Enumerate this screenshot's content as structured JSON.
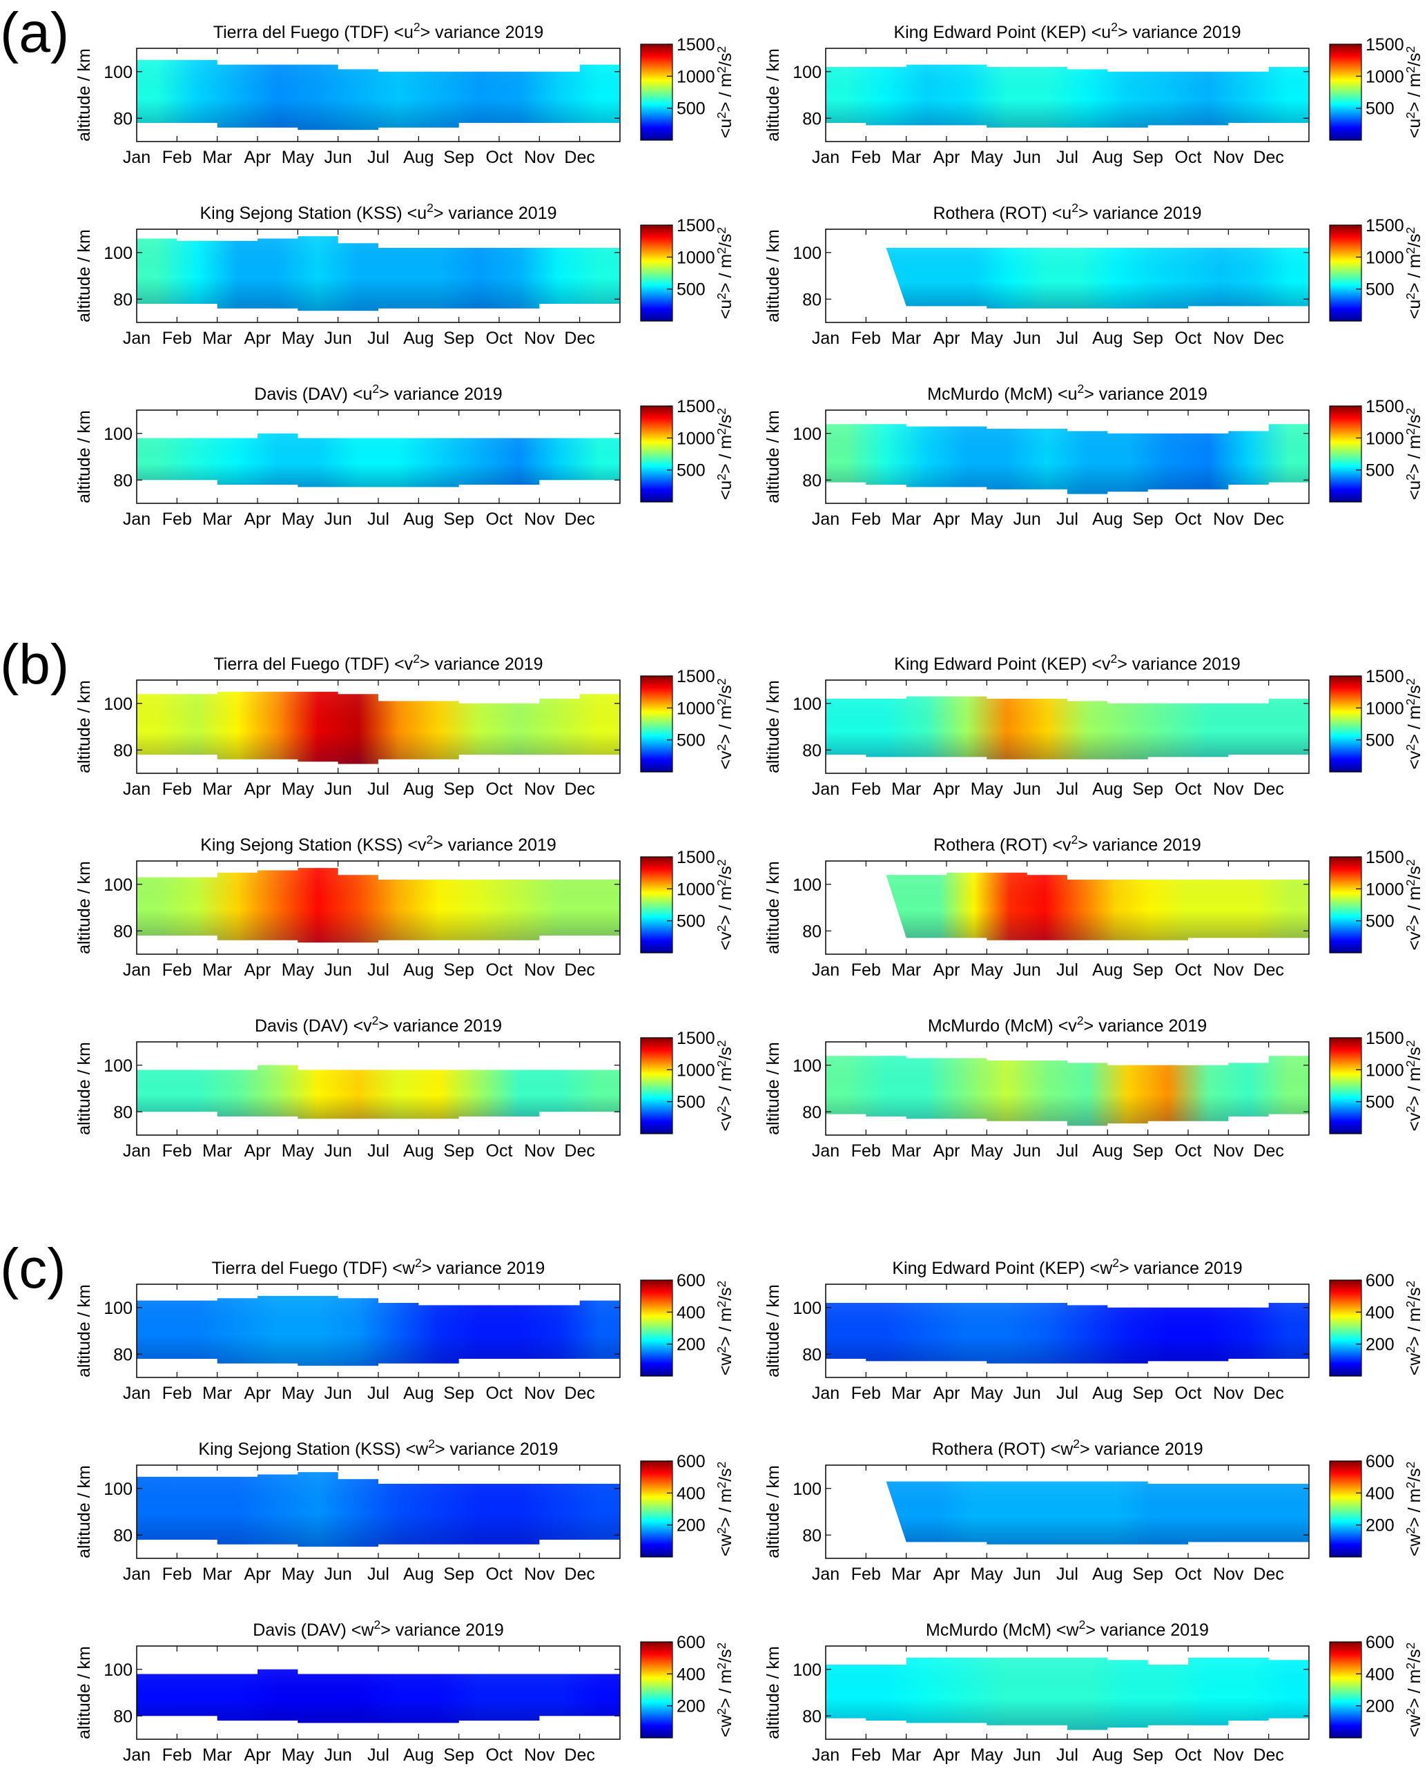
{
  "figure": {
    "months": [
      "Jan",
      "Feb",
      "Mar",
      "Apr",
      "May",
      "Jun",
      "Jul",
      "Aug",
      "Sep",
      "Oct",
      "Nov",
      "Dec"
    ],
    "ylabel": "altitude / km",
    "ylim": [
      70,
      110
    ],
    "yticks": [
      80,
      100
    ],
    "panel_groups": [
      {
        "label": "(a)",
        "component": "u",
        "cbar_ticks": [
          500,
          1000,
          1500
        ],
        "clim": [
          0,
          1500
        ]
      },
      {
        "label": "(b)",
        "component": "v",
        "cbar_ticks": [
          500,
          1000,
          1500
        ],
        "clim": [
          0,
          1500
        ]
      },
      {
        "label": "(c)",
        "component": "w",
        "cbar_ticks": [
          200,
          400,
          600
        ],
        "clim": [
          0,
          600
        ]
      }
    ],
    "stations": [
      {
        "name": "Tierra del Fuego",
        "code": "TDF"
      },
      {
        "name": "King Edward Point",
        "code": "KEP"
      },
      {
        "name": "King Sejong Station",
        "code": "KSS"
      },
      {
        "name": "Rothera",
        "code": "ROT"
      },
      {
        "name": "Davis",
        "code": "DAV"
      },
      {
        "name": "McMurdo",
        "code": "McM"
      }
    ],
    "year": "2019",
    "colormap": [
      "#00008f",
      "#0000ff",
      "#0080ff",
      "#00ffff",
      "#80ff80",
      "#ffff00",
      "#ff8000",
      "#ff0000",
      "#800000"
    ]
  },
  "chart_data": [
    {
      "type": "heatmap",
      "group": "(a)",
      "title": "Tierra del Fuego (TDF) <u2> variance 2019",
      "xlabel": "",
      "ylabel": "altitude / km",
      "ylim": [
        70,
        110
      ],
      "clabel": "<u2> / m2/s2",
      "clim": [
        0,
        1500
      ],
      "data_start_month": 0,
      "top_km": [
        105,
        105,
        103,
        103,
        103,
        101,
        100,
        100,
        100,
        100,
        100,
        103
      ],
      "bottom_km": [
        78,
        78,
        76,
        76,
        75,
        75,
        76,
        76,
        78,
        78,
        78,
        78
      ],
      "monthly_mean_variance": [
        600,
        500,
        450,
        400,
        420,
        450,
        480,
        450,
        420,
        430,
        500,
        550
      ]
    },
    {
      "type": "heatmap",
      "group": "(a)",
      "title": "King Edward Point (KEP) <u2> variance 2019",
      "xlabel": "",
      "ylabel": "altitude / km",
      "ylim": [
        70,
        110
      ],
      "clabel": "<u2> / m2/s2",
      "clim": [
        0,
        1500
      ],
      "data_start_month": 0,
      "top_km": [
        102,
        102,
        103,
        103,
        102,
        102,
        101,
        100,
        100,
        100,
        100,
        102
      ],
      "bottom_km": [
        78,
        77,
        77,
        77,
        76,
        76,
        76,
        76,
        77,
        77,
        78,
        78
      ],
      "monthly_mean_variance": [
        600,
        550,
        500,
        520,
        600,
        600,
        550,
        500,
        480,
        450,
        500,
        550
      ]
    },
    {
      "type": "heatmap",
      "group": "(a)",
      "title": "King Sejong Station (KSS) <u2> variance 2019",
      "xlabel": "",
      "ylabel": "altitude / km",
      "ylim": [
        70,
        110
      ],
      "clabel": "<u2> / m2/s2",
      "clim": [
        0,
        1500
      ],
      "data_start_month": 0,
      "top_km": [
        106,
        105,
        105,
        106,
        107,
        104,
        102,
        102,
        102,
        102,
        102,
        102
      ],
      "bottom_km": [
        78,
        78,
        76,
        76,
        75,
        75,
        76,
        76,
        76,
        76,
        78,
        78
      ],
      "monthly_mean_variance": [
        650,
        550,
        450,
        450,
        500,
        450,
        450,
        450,
        420,
        450,
        550,
        600
      ]
    },
    {
      "type": "heatmap",
      "group": "(a)",
      "title": "Rothera (ROT) <u2> variance 2019",
      "xlabel": "",
      "ylabel": "altitude / km",
      "ylim": [
        70,
        110
      ],
      "clabel": "<u2> / m2/s2",
      "clim": [
        0,
        1500
      ],
      "data_start_month": 1.5,
      "top_km": [
        null,
        102,
        102,
        102,
        102,
        102,
        102,
        102,
        102,
        102,
        102,
        102
      ],
      "bottom_km": [
        null,
        80,
        77,
        77,
        76,
        76,
        76,
        76,
        76,
        77,
        77,
        77
      ],
      "monthly_mean_variance": [
        null,
        500,
        500,
        550,
        600,
        600,
        550,
        520,
        500,
        480,
        500,
        550
      ]
    },
    {
      "type": "heatmap",
      "group": "(a)",
      "title": "Davis (DAV) <u2> variance 2019",
      "xlabel": "",
      "ylabel": "altitude / km",
      "ylim": [
        70,
        110
      ],
      "clabel": "<u2> / m2/s2",
      "clim": [
        0,
        1500
      ],
      "data_start_month": 0,
      "top_km": [
        98,
        98,
        98,
        100,
        98,
        98,
        98,
        98,
        98,
        98,
        98,
        98
      ],
      "bottom_km": [
        80,
        80,
        78,
        78,
        77,
        77,
        77,
        77,
        78,
        78,
        80,
        80
      ],
      "monthly_mean_variance": [
        650,
        600,
        550,
        500,
        500,
        550,
        550,
        500,
        450,
        400,
        500,
        600
      ]
    },
    {
      "type": "heatmap",
      "group": "(a)",
      "title": "McMurdo (McM) <u2> variance 2019",
      "xlabel": "",
      "ylabel": "altitude / km",
      "ylim": [
        70,
        110
      ],
      "clabel": "<u2> / m2/s2",
      "clim": [
        0,
        1500
      ],
      "data_start_month": 0,
      "top_km": [
        104,
        104,
        103,
        103,
        102,
        102,
        101,
        100,
        100,
        100,
        101,
        104
      ],
      "bottom_km": [
        79,
        78,
        77,
        77,
        76,
        76,
        74,
        75,
        76,
        76,
        78,
        79
      ],
      "monthly_mean_variance": [
        700,
        600,
        500,
        450,
        450,
        500,
        450,
        450,
        400,
        380,
        500,
        650
      ]
    },
    {
      "type": "heatmap",
      "group": "(b)",
      "title": "Tierra del Fuego (TDF) <v2> variance 2019",
      "xlabel": "",
      "ylabel": "altitude / km",
      "ylim": [
        70,
        110
      ],
      "clabel": "<v2> / m2/s2",
      "clim": [
        0,
        1500
      ],
      "data_start_month": 0,
      "top_km": [
        104,
        104,
        105,
        105,
        105,
        104,
        101,
        101,
        100,
        100,
        102,
        104
      ],
      "bottom_km": [
        78,
        78,
        76,
        76,
        75,
        74,
        76,
        76,
        78,
        78,
        78,
        78
      ],
      "monthly_mean_variance": [
        900,
        850,
        950,
        1100,
        1350,
        1400,
        1100,
        1000,
        850,
        800,
        850,
        900
      ]
    },
    {
      "type": "heatmap",
      "group": "(b)",
      "title": "King Edward Point (KEP) <v2> variance 2019",
      "xlabel": "",
      "ylabel": "altitude / km",
      "ylim": [
        70,
        110
      ],
      "clabel": "<v2> / m2/s2",
      "clim": [
        0,
        1500
      ],
      "data_start_month": 0,
      "top_km": [
        102,
        102,
        103,
        103,
        102,
        102,
        101,
        100,
        100,
        100,
        100,
        102
      ],
      "bottom_km": [
        78,
        77,
        77,
        77,
        76,
        76,
        76,
        76,
        77,
        77,
        78,
        78
      ],
      "monthly_mean_variance": [
        600,
        600,
        650,
        800,
        1100,
        1000,
        800,
        750,
        700,
        650,
        650,
        650
      ]
    },
    {
      "type": "heatmap",
      "group": "(b)",
      "title": "King Sejong Station (KSS) <v2> variance 2019",
      "xlabel": "",
      "ylabel": "altitude / km",
      "ylim": [
        70,
        110
      ],
      "clabel": "<v2> / m2/s2",
      "clim": [
        0,
        1500
      ],
      "data_start_month": 0,
      "top_km": [
        103,
        103,
        105,
        106,
        107,
        104,
        102,
        102,
        102,
        102,
        102,
        102
      ],
      "bottom_km": [
        78,
        78,
        76,
        76,
        75,
        75,
        76,
        76,
        76,
        76,
        78,
        78
      ],
      "monthly_mean_variance": [
        800,
        850,
        1000,
        1150,
        1300,
        1200,
        1050,
        950,
        900,
        850,
        800,
        800
      ]
    },
    {
      "type": "heatmap",
      "group": "(b)",
      "title": "Rothera (ROT) <v2> variance 2019",
      "xlabel": "",
      "ylabel": "altitude / km",
      "ylim": [
        70,
        110
      ],
      "clabel": "<v2> / m2/s2",
      "clim": [
        0,
        1500
      ],
      "data_start_month": 1.5,
      "top_km": [
        null,
        102,
        104,
        105,
        105,
        104,
        102,
        102,
        102,
        102,
        102,
        102
      ],
      "bottom_km": [
        null,
        80,
        77,
        77,
        76,
        76,
        76,
        76,
        76,
        77,
        77,
        77
      ],
      "monthly_mean_variance": [
        null,
        700,
        950,
        1250,
        1300,
        1150,
        1000,
        950,
        900,
        900,
        900,
        850
      ]
    },
    {
      "type": "heatmap",
      "group": "(b)",
      "title": "Davis (DAV) <v2> variance 2019",
      "xlabel": "",
      "ylabel": "altitude / km",
      "ylim": [
        70,
        110
      ],
      "clabel": "<v2> / m2/s2",
      "clim": [
        0,
        1500
      ],
      "data_start_month": 0,
      "top_km": [
        98,
        98,
        98,
        100,
        98,
        98,
        98,
        98,
        98,
        98,
        98,
        98
      ],
      "bottom_km": [
        80,
        80,
        78,
        78,
        77,
        77,
        77,
        77,
        78,
        78,
        80,
        80
      ],
      "monthly_mean_variance": [
        650,
        650,
        700,
        800,
        950,
        1000,
        900,
        950,
        800,
        650,
        650,
        700
      ]
    },
    {
      "type": "heatmap",
      "group": "(b)",
      "title": "McMurdo (McM) <v2> variance 2019",
      "xlabel": "",
      "ylabel": "altitude / km",
      "ylim": [
        70,
        110
      ],
      "clabel": "<v2> / m2/s2",
      "clim": [
        0,
        1500
      ],
      "data_start_month": 0,
      "top_km": [
        104,
        104,
        103,
        103,
        102,
        102,
        101,
        100,
        100,
        100,
        101,
        104
      ],
      "bottom_km": [
        79,
        78,
        77,
        77,
        76,
        76,
        74,
        75,
        76,
        76,
        78,
        79
      ],
      "monthly_mean_variance": [
        700,
        650,
        650,
        750,
        850,
        750,
        700,
        1000,
        1100,
        700,
        650,
        750
      ]
    },
    {
      "type": "heatmap",
      "group": "(c)",
      "title": "Tierra del Fuego (TDF) <w2> variance 2019",
      "xlabel": "",
      "ylabel": "altitude / km",
      "ylim": [
        70,
        110
      ],
      "clabel": "<w2> / m2/s2",
      "clim": [
        0,
        600
      ],
      "data_start_month": 0,
      "top_km": [
        103,
        103,
        104,
        105,
        105,
        104,
        102,
        101,
        101,
        101,
        101,
        103
      ],
      "bottom_km": [
        78,
        78,
        76,
        76,
        75,
        75,
        76,
        76,
        78,
        78,
        78,
        78
      ],
      "monthly_mean_variance": [
        150,
        150,
        160,
        170,
        170,
        160,
        130,
        100,
        90,
        90,
        100,
        130
      ]
    },
    {
      "type": "heatmap",
      "group": "(c)",
      "title": "King Edward Point (KEP) <w2> variance 2019",
      "xlabel": "",
      "ylabel": "altitude / km",
      "ylim": [
        70,
        110
      ],
      "clabel": "<w2> / m2/s2",
      "clim": [
        0,
        600
      ],
      "data_start_month": 0,
      "top_km": [
        102,
        102,
        102,
        102,
        102,
        102,
        101,
        100,
        100,
        100,
        100,
        102
      ],
      "bottom_km": [
        78,
        77,
        77,
        77,
        76,
        76,
        76,
        76,
        77,
        77,
        78,
        78
      ],
      "monthly_mean_variance": [
        120,
        120,
        130,
        140,
        140,
        130,
        110,
        90,
        80,
        80,
        90,
        110
      ]
    },
    {
      "type": "heatmap",
      "group": "(c)",
      "title": "King Sejong Station (KSS) <w2> variance 2019",
      "xlabel": "",
      "ylabel": "altitude / km",
      "ylim": [
        70,
        110
      ],
      "clabel": "<w2> / m2/s2",
      "clim": [
        0,
        600
      ],
      "data_start_month": 0,
      "top_km": [
        105,
        105,
        105,
        106,
        107,
        104,
        102,
        102,
        102,
        102,
        102,
        102
      ],
      "bottom_km": [
        78,
        78,
        76,
        76,
        75,
        75,
        76,
        76,
        76,
        76,
        78,
        78
      ],
      "monthly_mean_variance": [
        140,
        140,
        140,
        150,
        160,
        140,
        120,
        110,
        100,
        100,
        110,
        120
      ]
    },
    {
      "type": "heatmap",
      "group": "(c)",
      "title": "Rothera (ROT) <w2> variance 2019",
      "xlabel": "",
      "ylabel": "altitude / km",
      "ylim": [
        70,
        110
      ],
      "clabel": "<w2> / m2/s2",
      "clim": [
        0,
        600
      ],
      "data_start_month": 1.5,
      "top_km": [
        null,
        103,
        103,
        103,
        103,
        103,
        103,
        103,
        102,
        102,
        102,
        102
      ],
      "bottom_km": [
        null,
        80,
        77,
        77,
        76,
        76,
        76,
        76,
        76,
        77,
        77,
        77
      ],
      "monthly_mean_variance": [
        null,
        170,
        180,
        180,
        180,
        180,
        180,
        170,
        170,
        170,
        170,
        170
      ]
    },
    {
      "type": "heatmap",
      "group": "(c)",
      "title": "Davis (DAV) <w2> variance 2019",
      "xlabel": "",
      "ylabel": "altitude / km",
      "ylim": [
        70,
        110
      ],
      "clabel": "<w2> / m2/s2",
      "clim": [
        0,
        600
      ],
      "data_start_month": 0,
      "top_km": [
        98,
        98,
        98,
        100,
        98,
        98,
        98,
        98,
        98,
        98,
        98,
        98
      ],
      "bottom_km": [
        80,
        80,
        78,
        78,
        77,
        77,
        77,
        77,
        78,
        78,
        80,
        80
      ],
      "monthly_mean_variance": [
        80,
        80,
        80,
        70,
        70,
        70,
        80,
        80,
        90,
        90,
        90,
        80
      ]
    },
    {
      "type": "heatmap",
      "group": "(c)",
      "title": "McMurdo (McM) <w2> variance 2019",
      "xlabel": "",
      "ylabel": "altitude / km",
      "ylim": [
        70,
        110
      ],
      "clabel": "<w2> / m2/s2",
      "clim": [
        0,
        600
      ],
      "data_start_month": 0,
      "top_km": [
        102,
        102,
        105,
        105,
        105,
        105,
        105,
        104,
        102,
        105,
        105,
        104
      ],
      "bottom_km": [
        79,
        78,
        77,
        77,
        76,
        76,
        74,
        75,
        76,
        76,
        78,
        79
      ],
      "monthly_mean_variance": [
        220,
        220,
        230,
        240,
        250,
        250,
        250,
        240,
        240,
        230,
        230,
        220
      ]
    }
  ]
}
